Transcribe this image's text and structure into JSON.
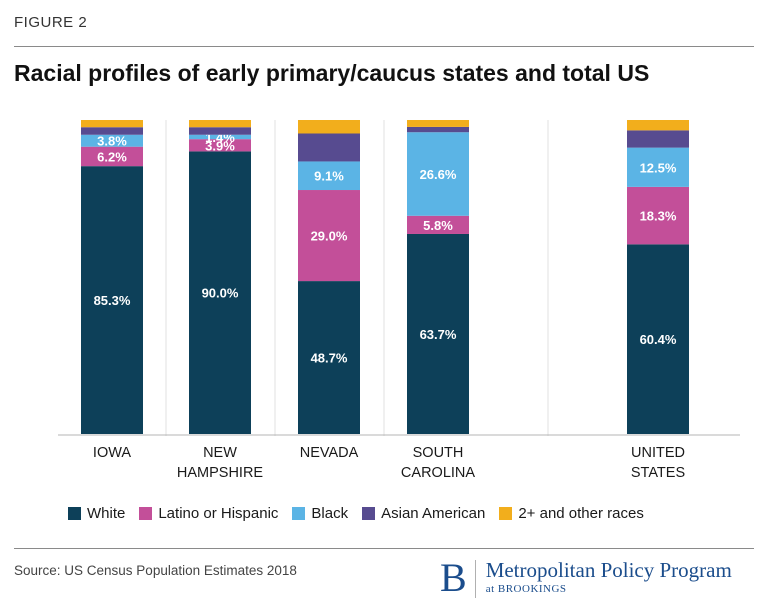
{
  "figure_label": "FIGURE 2",
  "title": "Racial profiles of early primary/caucus states and total US",
  "source": "Source: US Census Population Estimates 2018",
  "logo": {
    "mark": "B",
    "name": "Metropolitan Policy Program",
    "sub": "at BROOKINGS"
  },
  "colors": {
    "white": "#0d4059",
    "latino": "#c34f99",
    "black": "#5bb4e5",
    "asian": "#574b90",
    "other": "#f2ae1c"
  },
  "chart_data": {
    "type": "bar",
    "stacked": true,
    "ylim": [
      0,
      100
    ],
    "grid": false,
    "legend_position": "bottom",
    "categories": [
      [
        "IOWA"
      ],
      [
        "NEW",
        "HAMPSHIRE"
      ],
      [
        "NEVADA"
      ],
      [
        "SOUTH",
        "CAROLINA"
      ],
      [
        "UNITED",
        "STATES"
      ]
    ],
    "series": [
      {
        "name": "White",
        "key": "white",
        "values": [
          85.3,
          90.0,
          48.7,
          63.7,
          60.4
        ],
        "labels": [
          "85.3%",
          "90.0%",
          "48.7%",
          "63.7%",
          "60.4%"
        ]
      },
      {
        "name": "Latino or Hispanic",
        "key": "latino",
        "values": [
          6.2,
          3.9,
          29.0,
          5.8,
          18.3
        ],
        "labels": [
          "6.2%",
          "3.9%",
          "29.0%",
          "5.8%",
          "18.3%"
        ]
      },
      {
        "name": "Black",
        "key": "black",
        "values": [
          3.8,
          1.4,
          9.1,
          26.6,
          12.5
        ],
        "labels": [
          "3.8%",
          "1.4%",
          "9.1%",
          "26.6%",
          "12.5%"
        ]
      },
      {
        "name": "Asian American",
        "key": "asian",
        "values": [
          2.4,
          2.4,
          8.9,
          1.7,
          5.5
        ],
        "labels": [
          "",
          "",
          "",
          "",
          ""
        ]
      },
      {
        "name": "2+ and other races",
        "key": "other",
        "values": [
          2.3,
          2.3,
          4.3,
          2.2,
          3.3
        ],
        "labels": [
          "",
          "",
          "",
          "",
          ""
        ]
      }
    ]
  }
}
